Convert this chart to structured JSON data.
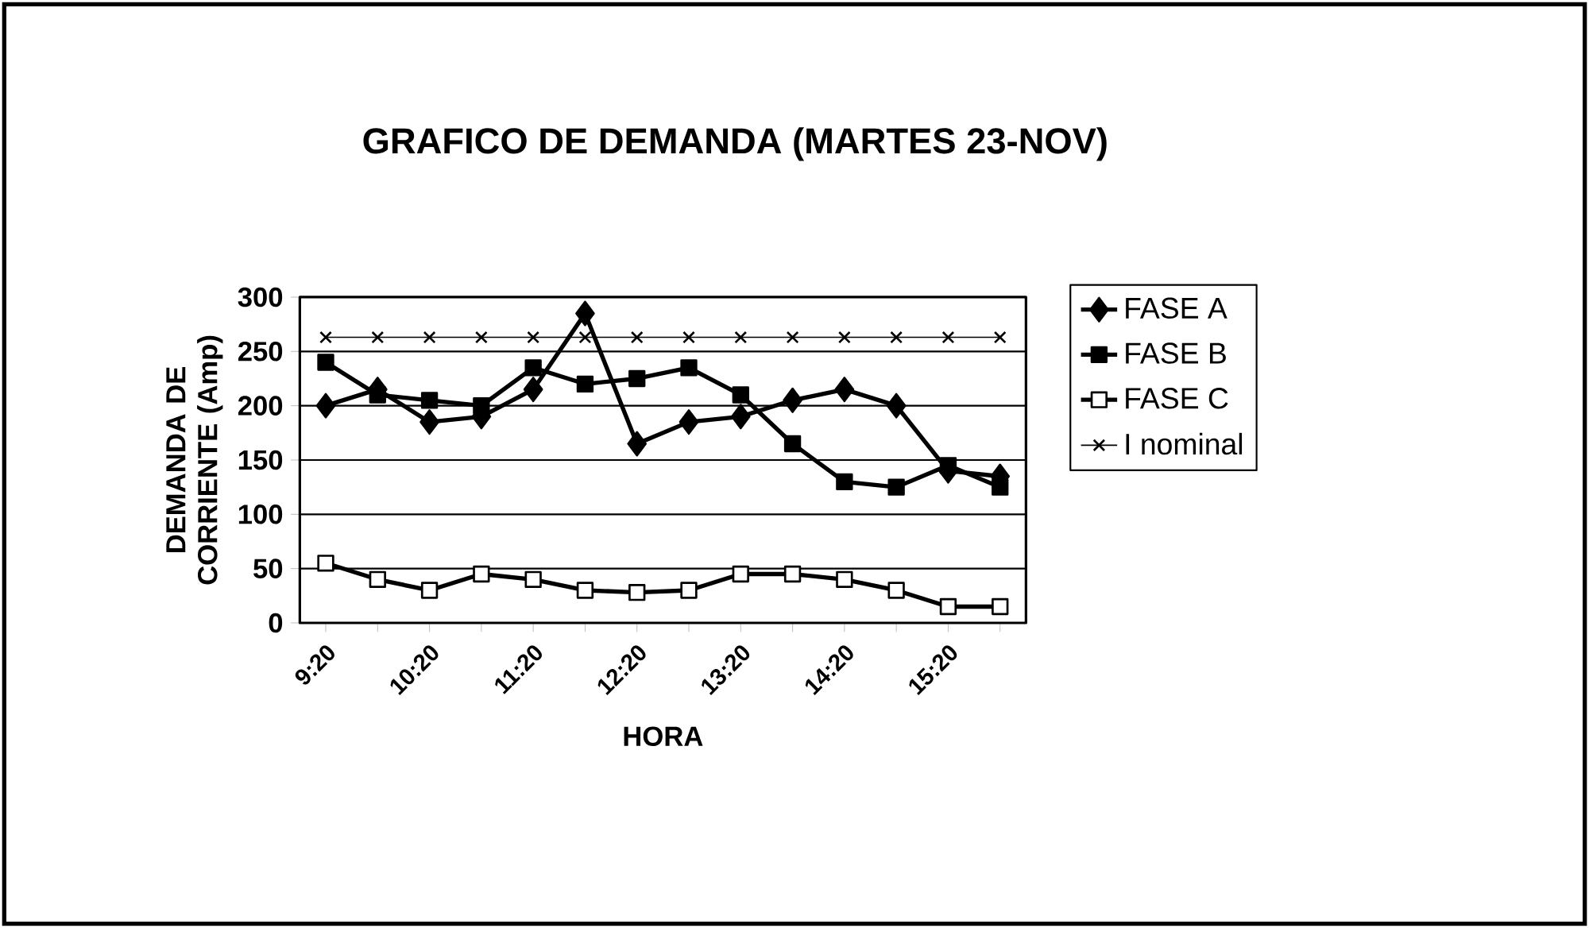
{
  "chart_data": {
    "type": "line",
    "title": "GRAFICO DE DEMANDA (MARTES 23-NOV)",
    "xlabel": "HORA",
    "ylabel": "DEMANDA DE CORRIENTE (Amp)",
    "categories": [
      "9:20",
      null,
      "10:20",
      null,
      "11:20",
      null,
      "12:20",
      null,
      "13:20",
      null,
      "14:20",
      null,
      "15:20",
      null
    ],
    "ylim": [
      0,
      300
    ],
    "yticks": [
      0,
      50,
      100,
      150,
      200,
      250,
      300
    ],
    "grid": "y",
    "legend": "right",
    "series": [
      {
        "name": "FASE A",
        "color": "#000000",
        "marker": "diamond",
        "values": [
          200,
          215,
          185,
          190,
          215,
          285,
          165,
          185,
          190,
          205,
          215,
          200,
          140,
          135
        ]
      },
      {
        "name": "FASE B",
        "color": "#000000",
        "marker": "square",
        "values": [
          240,
          210,
          205,
          200,
          235,
          220,
          225,
          235,
          210,
          165,
          130,
          125,
          145,
          125
        ]
      },
      {
        "name": "FASE C",
        "color": "#000000",
        "marker": "square",
        "values": [
          55,
          40,
          30,
          45,
          40,
          30,
          28,
          30,
          45,
          45,
          40,
          30,
          15,
          15
        ]
      },
      {
        "name": "I nominal",
        "color": "#000000",
        "marker": "cross",
        "values": [
          263,
          263,
          263,
          263,
          263,
          263,
          263,
          263,
          263,
          263,
          263,
          263,
          263,
          263
        ]
      }
    ]
  }
}
